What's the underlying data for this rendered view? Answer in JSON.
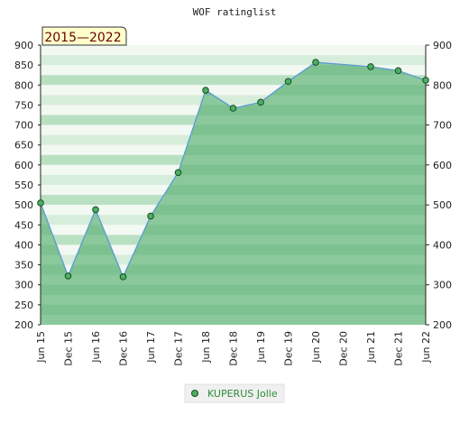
{
  "chart_data": {
    "type": "area",
    "title": "WOF ratinglist",
    "period_label": "2015—2022",
    "categories": [
      "Jun 15",
      "Dec 15",
      "Jun 16",
      "Dec 16",
      "Jun 17",
      "Dec 17",
      "Jun 18",
      "Dec 18",
      "Jun 19",
      "Dec 19",
      "Jun 20",
      "Dec 20",
      "Jun 21",
      "Dec 21",
      "Jun 22"
    ],
    "y_ticks": [
      200,
      250,
      300,
      350,
      400,
      450,
      500,
      550,
      600,
      650,
      700,
      750,
      800,
      850,
      900
    ],
    "y2_ticks": [
      200,
      300,
      400,
      500,
      600,
      700,
      800,
      900
    ],
    "ylim": [
      200,
      900
    ],
    "series": [
      {
        "name": "KUPERUS Jolle",
        "points": [
          {
            "x": 0,
            "y": 505
          },
          {
            "x": 1,
            "y": 322
          },
          {
            "x": 2,
            "y": 488
          },
          {
            "x": 3,
            "y": 320
          },
          {
            "x": 4,
            "y": 472
          },
          {
            "x": 5,
            "y": 581
          },
          {
            "x": 6,
            "y": 787
          },
          {
            "x": 7,
            "y": 742
          },
          {
            "x": 8,
            "y": 757
          },
          {
            "x": 9,
            "y": 809
          },
          {
            "x": 10,
            "y": 857
          },
          {
            "x": 12,
            "y": 846
          },
          {
            "x": 13,
            "y": 836
          },
          {
            "x": 14,
            "y": 812
          }
        ]
      }
    ],
    "colors": {
      "area_fill": "#7cc18f",
      "line": "#5b9bd5",
      "marker_fill": "#4caf62",
      "band_light": "#f2f8f2",
      "band_mid": "#d7eddb",
      "band_dark": "#b9e0c2",
      "badge_bg": "#ffffcc",
      "legend_text": "#2e8b3a"
    },
    "legend_position": "bottom-center"
  }
}
